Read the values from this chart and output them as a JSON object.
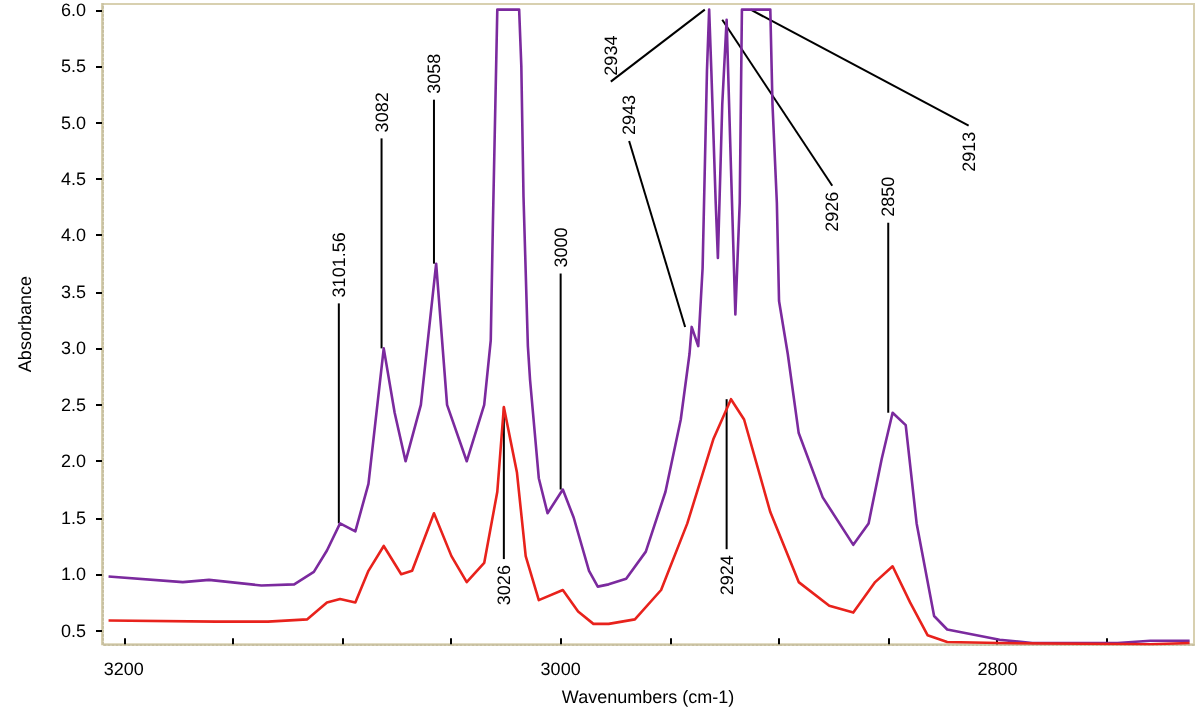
{
  "chart_data": {
    "type": "line",
    "xlabel": "Wavenumbers (cm-1)",
    "ylabel": "Absorbance",
    "xlim": [
      3210,
      2710
    ],
    "xticks": [
      3200,
      {
        "value": 3150,
        "label": null
      },
      {
        "value": 3100,
        "label": null
      },
      {
        "value": 3050,
        "label": null
      },
      3000,
      {
        "value": 2950,
        "label": null
      },
      {
        "value": 2900,
        "label": null
      },
      {
        "value": 2850,
        "label": null
      },
      2800,
      {
        "value": 2750,
        "label": null
      }
    ],
    "ylim": [
      0.38,
      6.05
    ],
    "yticks": [
      0.5,
      {
        "value": 1,
        "label": "1.0"
      },
      1.5,
      {
        "value": 2,
        "label": "2.0"
      },
      2.5,
      {
        "value": 3,
        "label": "3.0"
      },
      3.5,
      {
        "value": 4,
        "label": "4.0"
      },
      4.5,
      {
        "value": 5,
        "label": "5.0"
      },
      5.5,
      {
        "value": 6,
        "label": "6.0"
      }
    ],
    "grid": false,
    "marker": "none",
    "line_style": "solid",
    "series": [
      {
        "color": "#7b2a9e",
        "x": [
          3207,
          3173,
          3161,
          3137,
          3122,
          3113,
          3107,
          3101,
          3094,
          3088,
          3081,
          3076,
          3071,
          3064,
          3057,
          3052,
          3043,
          3035,
          3032,
          3031,
          3029,
          3019,
          3018,
          3017,
          3015,
          3014,
          3010,
          3006,
          2999,
          2994,
          2987,
          2983,
          2978,
          2970,
          2961,
          2952,
          2945,
          2941,
          2940,
          2937,
          2935,
          2933,
          2932,
          2931,
          2929,
          2928,
          2926,
          2924,
          2922,
          2920,
          2918,
          2917,
          2904,
          2903,
          2901,
          2900,
          2896,
          2891,
          2880,
          2866,
          2859,
          2853,
          2848,
          2842,
          2837,
          2829,
          2823,
          2799,
          2784,
          2745,
          2730,
          2712
        ],
        "values": [
          0.98,
          0.93,
          0.95,
          0.9,
          0.91,
          1.02,
          1.21,
          1.45,
          1.38,
          1.8,
          3.0,
          2.43,
          2.0,
          2.5,
          3.75,
          2.5,
          2.0,
          2.5,
          3.07,
          4.12,
          6.0,
          6.0,
          5.5,
          4.34,
          3.02,
          2.72,
          1.85,
          1.54,
          1.75,
          1.5,
          1.03,
          0.89,
          0.91,
          0.96,
          1.2,
          1.73,
          2.37,
          2.95,
          3.19,
          3.02,
          3.71,
          5.46,
          6.0,
          5.46,
          4.29,
          3.8,
          5.16,
          5.91,
          4.59,
          3.3,
          4.29,
          6.0,
          6.0,
          5.16,
          4.29,
          3.42,
          2.95,
          2.25,
          1.68,
          1.26,
          1.45,
          2.02,
          2.43,
          2.32,
          1.45,
          0.63,
          0.51,
          0.42,
          0.39,
          0.39,
          0.41,
          0.41
        ]
      },
      {
        "color": "#e8221c",
        "x": [
          3207,
          3158,
          3134,
          3116,
          3107,
          3101,
          3094,
          3088,
          3081,
          3073,
          3068,
          3058,
          3050,
          3043,
          3035,
          3029,
          3026,
          3020,
          3016,
          3010,
          2999,
          2992,
          2985,
          2978,
          2966,
          2954,
          2942,
          2930,
          2922,
          2916,
          2904,
          2891,
          2877,
          2866,
          2856,
          2848,
          2840,
          2832,
          2823,
          2799,
          2730,
          2712
        ],
        "values": [
          0.59,
          0.58,
          0.58,
          0.6,
          0.75,
          0.78,
          0.75,
          1.03,
          1.25,
          1.0,
          1.03,
          1.54,
          1.16,
          0.93,
          1.1,
          1.73,
          2.48,
          1.9,
          1.16,
          0.77,
          0.86,
          0.67,
          0.56,
          0.56,
          0.6,
          0.86,
          1.45,
          2.2,
          2.55,
          2.37,
          1.55,
          0.93,
          0.72,
          0.66,
          0.93,
          1.07,
          0.75,
          0.46,
          0.4,
          0.39,
          0.38,
          0.39
        ]
      }
    ],
    "annotations": [
      {
        "text": "3101.56",
        "x": 3101.56,
        "y": 1.45
      },
      {
        "text": "3082",
        "x": 3082,
        "y": 3.0
      },
      {
        "text": "3058",
        "x": 3058,
        "y": 3.75
      },
      {
        "text": "3000",
        "x": 3000,
        "y": 1.75
      },
      {
        "text": "2943",
        "x": 2943,
        "y": 3.19
      },
      {
        "text": "2934",
        "x": 2934,
        "y": 6.0
      },
      {
        "text": "2926",
        "x": 2926,
        "y": 5.91
      },
      {
        "text": "2913",
        "x": 2913,
        "y": 6.0
      },
      {
        "text": "2850",
        "x": 2850,
        "y": 2.43
      },
      {
        "text": "3026",
        "x": 3026,
        "y": 2.48
      },
      {
        "text": "2924",
        "x": 2924,
        "y": 2.55
      }
    ]
  }
}
